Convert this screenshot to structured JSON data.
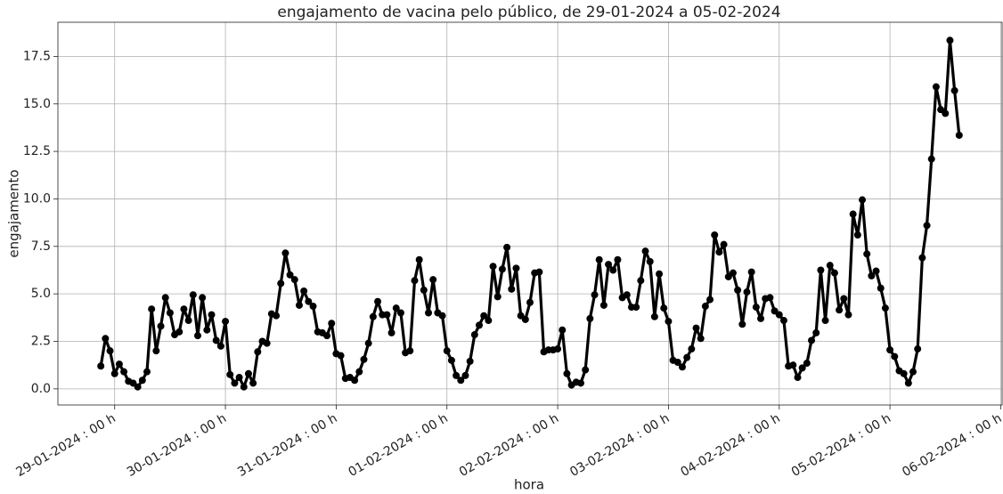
{
  "chart_data": {
    "type": "line",
    "title": "engajamento de vacina pelo público, de 29-01-2024 a 05-02-2024",
    "xlabel": "hora",
    "ylabel": "engajamento",
    "x": [
      "2024-01-28 21:00",
      "2024-01-28 22:00",
      "2024-01-28 23:00",
      "2024-01-29 00:00",
      "2024-01-29 01:00",
      "2024-01-29 02:00",
      "2024-01-29 03:00",
      "2024-01-29 04:00",
      "2024-01-29 05:00",
      "2024-01-29 06:00",
      "2024-01-29 07:00",
      "2024-01-29 08:00",
      "2024-01-29 09:00",
      "2024-01-29 10:00",
      "2024-01-29 11:00",
      "2024-01-29 12:00",
      "2024-01-29 13:00",
      "2024-01-29 14:00",
      "2024-01-29 15:00",
      "2024-01-29 16:00",
      "2024-01-29 17:00",
      "2024-01-29 18:00",
      "2024-01-29 19:00",
      "2024-01-29 20:00",
      "2024-01-29 21:00",
      "2024-01-29 22:00",
      "2024-01-29 23:00",
      "2024-01-30 00:00",
      "2024-01-30 01:00",
      "2024-01-30 02:00",
      "2024-01-30 03:00",
      "2024-01-30 04:00",
      "2024-01-30 05:00",
      "2024-01-30 06:00",
      "2024-01-30 07:00",
      "2024-01-30 08:00",
      "2024-01-30 09:00",
      "2024-01-30 10:00",
      "2024-01-30 11:00",
      "2024-01-30 12:00",
      "2024-01-30 13:00",
      "2024-01-30 14:00",
      "2024-01-30 15:00",
      "2024-01-30 16:00",
      "2024-01-30 17:00",
      "2024-01-30 18:00",
      "2024-01-30 19:00",
      "2024-01-30 20:00",
      "2024-01-30 21:00",
      "2024-01-30 22:00",
      "2024-01-30 23:00",
      "2024-01-31 00:00",
      "2024-01-31 01:00",
      "2024-01-31 02:00",
      "2024-01-31 03:00",
      "2024-01-31 04:00",
      "2024-01-31 05:00",
      "2024-01-31 06:00",
      "2024-01-31 07:00",
      "2024-01-31 08:00",
      "2024-01-31 09:00",
      "2024-01-31 10:00",
      "2024-01-31 11:00",
      "2024-01-31 12:00",
      "2024-01-31 13:00",
      "2024-01-31 14:00",
      "2024-01-31 15:00",
      "2024-01-31 16:00",
      "2024-01-31 17:00",
      "2024-01-31 18:00",
      "2024-01-31 19:00",
      "2024-01-31 20:00",
      "2024-01-31 21:00",
      "2024-01-31 22:00",
      "2024-01-31 23:00",
      "2024-02-01 00:00",
      "2024-02-01 01:00",
      "2024-02-01 02:00",
      "2024-02-01 03:00",
      "2024-02-01 04:00",
      "2024-02-01 05:00",
      "2024-02-01 06:00",
      "2024-02-01 07:00",
      "2024-02-01 08:00",
      "2024-02-01 09:00",
      "2024-02-01 10:00",
      "2024-02-01 11:00",
      "2024-02-01 12:00",
      "2024-02-01 13:00",
      "2024-02-01 14:00",
      "2024-02-01 15:00",
      "2024-02-01 16:00",
      "2024-02-01 17:00",
      "2024-02-01 18:00",
      "2024-02-01 19:00",
      "2024-02-01 20:00",
      "2024-02-01 21:00",
      "2024-02-01 22:00",
      "2024-02-01 23:00",
      "2024-02-02 00:00",
      "2024-02-02 01:00",
      "2024-02-02 02:00",
      "2024-02-02 03:00",
      "2024-02-02 04:00",
      "2024-02-02 05:00",
      "2024-02-02 06:00",
      "2024-02-02 07:00",
      "2024-02-02 08:00",
      "2024-02-02 09:00",
      "2024-02-02 10:00",
      "2024-02-02 11:00",
      "2024-02-02 12:00",
      "2024-02-02 13:00",
      "2024-02-02 14:00",
      "2024-02-02 15:00",
      "2024-02-02 16:00",
      "2024-02-02 17:00",
      "2024-02-02 18:00",
      "2024-02-02 19:00",
      "2024-02-02 20:00",
      "2024-02-02 21:00",
      "2024-02-02 22:00",
      "2024-02-02 23:00",
      "2024-02-03 00:00",
      "2024-02-03 01:00",
      "2024-02-03 02:00",
      "2024-02-03 03:00",
      "2024-02-03 04:00",
      "2024-02-03 05:00",
      "2024-02-03 06:00",
      "2024-02-03 07:00",
      "2024-02-03 08:00",
      "2024-02-03 09:00",
      "2024-02-03 10:00",
      "2024-02-03 11:00",
      "2024-02-03 12:00",
      "2024-02-03 13:00",
      "2024-02-03 14:00",
      "2024-02-03 15:00",
      "2024-02-03 16:00",
      "2024-02-03 17:00",
      "2024-02-03 18:00",
      "2024-02-03 19:00",
      "2024-02-03 20:00",
      "2024-02-03 21:00",
      "2024-02-03 22:00",
      "2024-02-03 23:00",
      "2024-02-04 00:00",
      "2024-02-04 01:00",
      "2024-02-04 02:00",
      "2024-02-04 03:00",
      "2024-02-04 04:00",
      "2024-02-04 05:00",
      "2024-02-04 06:00",
      "2024-02-04 07:00",
      "2024-02-04 08:00",
      "2024-02-04 09:00",
      "2024-02-04 10:00",
      "2024-02-04 11:00",
      "2024-02-04 12:00",
      "2024-02-04 13:00",
      "2024-02-04 14:00",
      "2024-02-04 15:00",
      "2024-02-04 16:00",
      "2024-02-04 17:00",
      "2024-02-04 18:00",
      "2024-02-04 19:00",
      "2024-02-04 20:00",
      "2024-02-04 21:00",
      "2024-02-04 22:00",
      "2024-02-04 23:00",
      "2024-02-05 00:00",
      "2024-02-05 01:00",
      "2024-02-05 02:00",
      "2024-02-05 03:00",
      "2024-02-05 04:00",
      "2024-02-05 05:00",
      "2024-02-05 06:00",
      "2024-02-05 07:00",
      "2024-02-05 08:00",
      "2024-02-05 09:00",
      "2024-02-05 10:00",
      "2024-02-05 11:00",
      "2024-02-05 12:00",
      "2024-02-05 13:00",
      "2024-02-05 14:00",
      "2024-02-05 15:00"
    ],
    "series": [
      {
        "name": "engajamento",
        "color": "#000000",
        "values": [
          1.2,
          2.65,
          2.0,
          0.8,
          1.3,
          0.9,
          0.4,
          0.3,
          0.1,
          0.45,
          0.9,
          4.2,
          2.0,
          3.3,
          4.8,
          4.0,
          2.85,
          3.0,
          4.2,
          3.6,
          4.95,
          2.8,
          4.8,
          3.1,
          3.9,
          2.55,
          2.25,
          3.55,
          0.75,
          0.3,
          0.6,
          0.1,
          0.8,
          0.3,
          1.95,
          2.5,
          2.4,
          3.95,
          3.85,
          5.55,
          7.15,
          6.0,
          5.75,
          4.4,
          5.15,
          4.6,
          4.35,
          3.0,
          2.95,
          2.8,
          3.45,
          1.85,
          1.75,
          0.55,
          0.6,
          0.45,
          0.9,
          1.55,
          2.4,
          3.8,
          4.6,
          3.9,
          3.9,
          2.95,
          4.25,
          4.0,
          1.9,
          2.0,
          5.7,
          6.8,
          5.2,
          4.0,
          5.75,
          4.0,
          3.85,
          2.0,
          1.5,
          0.7,
          0.45,
          0.7,
          1.45,
          2.85,
          3.35,
          3.85,
          3.6,
          6.45,
          4.85,
          6.3,
          7.45,
          5.25,
          6.35,
          3.85,
          3.65,
          4.55,
          6.1,
          6.15,
          1.95,
          2.05,
          2.05,
          2.1,
          3.1,
          0.8,
          0.2,
          0.35,
          0.3,
          1.0,
          3.7,
          4.95,
          6.8,
          4.4,
          6.55,
          6.25,
          6.8,
          4.8,
          4.95,
          4.3,
          4.3,
          5.7,
          7.25,
          6.7,
          3.8,
          6.05,
          4.25,
          3.55,
          1.5,
          1.4,
          1.15,
          1.65,
          2.1,
          3.2,
          2.65,
          4.35,
          4.7,
          8.1,
          7.2,
          7.6,
          5.9,
          6.1,
          5.2,
          3.4,
          5.1,
          6.15,
          4.3,
          3.7,
          4.75,
          4.8,
          4.1,
          3.9,
          3.6,
          1.2,
          1.25,
          0.6,
          1.1,
          1.35,
          2.55,
          2.95,
          6.25,
          3.6,
          6.5,
          6.1,
          4.15,
          4.75,
          3.9,
          9.2,
          8.1,
          9.95,
          7.1,
          5.95,
          6.2,
          5.3,
          4.25,
          2.05,
          1.7,
          0.95,
          0.8,
          0.3,
          0.9,
          2.1,
          6.9,
          8.6,
          12.1,
          15.9,
          14.7,
          14.5,
          18.35,
          15.7,
          13.35
        ]
      }
    ],
    "xlim": [
      "2024-01-28 11:42",
      "2024-02-06 00:18"
    ],
    "xticks": [
      {
        "value": "2024-01-29 00:00",
        "label": "29-01-2024 : 00 h"
      },
      {
        "value": "2024-01-30 00:00",
        "label": "30-01-2024 : 00 h"
      },
      {
        "value": "2024-01-31 00:00",
        "label": "31-01-2024 : 00 h"
      },
      {
        "value": "2024-02-01 00:00",
        "label": "01-02-2024 : 00 h"
      },
      {
        "value": "2024-02-02 00:00",
        "label": "02-02-2024 : 00 h"
      },
      {
        "value": "2024-02-03 00:00",
        "label": "03-02-2024 : 00 h"
      },
      {
        "value": "2024-02-04 00:00",
        "label": "04-02-2024 : 00 h"
      },
      {
        "value": "2024-02-05 00:00",
        "label": "05-02-2024 : 00 h"
      },
      {
        "value": "2024-02-06 00:00",
        "label": "06-02-2024 : 00 h"
      }
    ],
    "ylim": [
      -0.85,
      19.3
    ],
    "yticks": [
      {
        "value": 0,
        "label": "0.0"
      },
      2.5,
      {
        "value": 5,
        "label": "5.0"
      },
      7.5,
      {
        "value": 10,
        "label": "10.0"
      },
      12.5,
      {
        "value": 15,
        "label": "15.0"
      },
      17.5
    ],
    "grid": true
  }
}
